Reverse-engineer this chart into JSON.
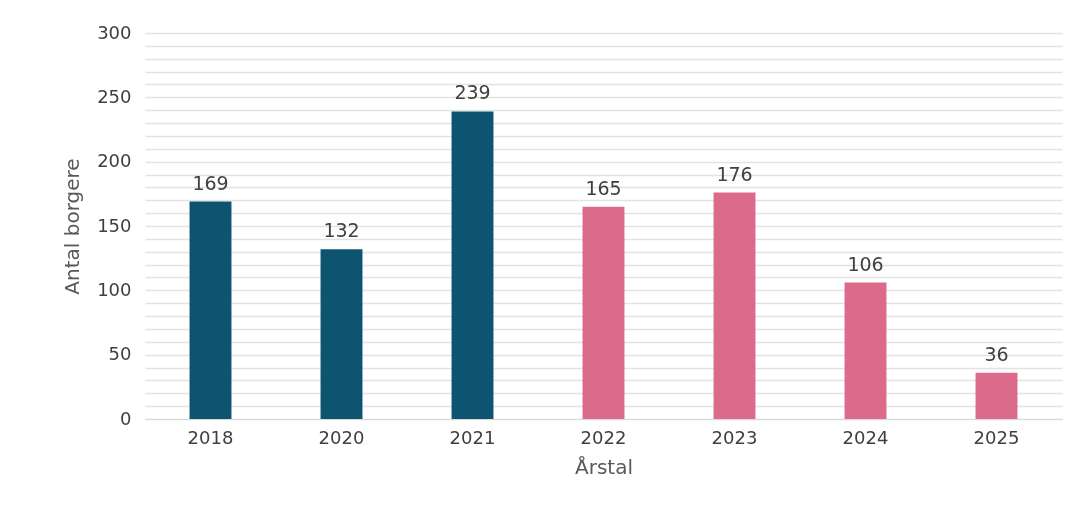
{
  "chart_data": {
    "type": "bar",
    "xlabel": "Årstal",
    "ylabel": "Antal borgere",
    "categories": [
      "2018",
      "2020",
      "2021",
      "2022",
      "2023",
      "2024",
      "2025"
    ],
    "values": [
      169,
      132,
      239,
      165,
      176,
      106,
      36
    ],
    "colors": [
      "#0e5470",
      "#0e5470",
      "#0e5470",
      "#dc6a8a",
      "#dc6a8a",
      "#dc6a8a",
      "#dc6a8a"
    ],
    "ylim": [
      0,
      300
    ],
    "yticks": [
      0,
      {
        "value": 10,
        "label": null
      },
      {
        "value": 20,
        "label": null
      },
      {
        "value": 30,
        "label": null
      },
      {
        "value": 40,
        "label": null
      },
      50,
      {
        "value": 60,
        "label": null
      },
      {
        "value": 70,
        "label": null
      },
      {
        "value": 80,
        "label": null
      },
      {
        "value": 90,
        "label": null
      },
      100,
      {
        "value": 110,
        "label": null
      },
      {
        "value": 120,
        "label": null
      },
      {
        "value": 130,
        "label": null
      },
      {
        "value": 140,
        "label": null
      },
      150,
      {
        "value": 160,
        "label": null
      },
      {
        "value": 170,
        "label": null
      },
      {
        "value": 180,
        "label": null
      },
      {
        "value": 190,
        "label": null
      },
      200,
      {
        "value": 210,
        "label": null
      },
      {
        "value": 220,
        "label": null
      },
      {
        "value": 230,
        "label": null
      },
      {
        "value": 240,
        "label": null
      },
      250,
      {
        "value": 260,
        "label": null
      },
      {
        "value": 270,
        "label": null
      },
      {
        "value": 280,
        "label": null
      },
      {
        "value": 290,
        "label": null
      },
      300
    ],
    "grid": true,
    "data_labels": true
  }
}
